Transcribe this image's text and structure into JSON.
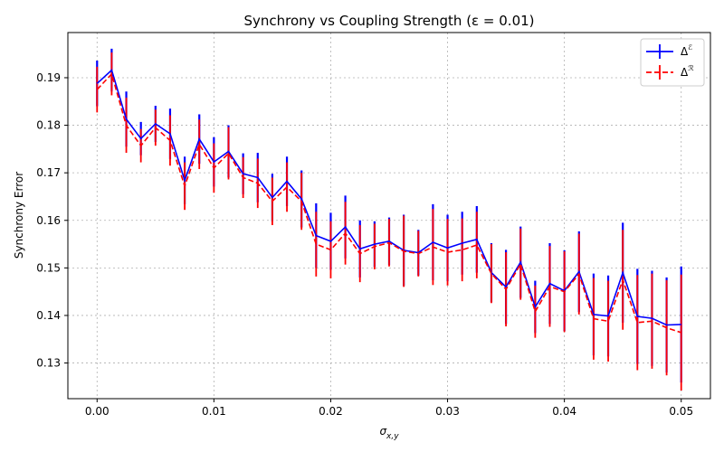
{
  "chart_data": {
    "type": "line",
    "title": "Synchrony vs Coupling Strength (ε = 0.01)",
    "xlabel_base": "σ",
    "xlabel_sub": "x,y",
    "ylabel": "Synchrony Error",
    "xlim": [
      -0.0025,
      0.0525
    ],
    "ylim": [
      0.1225,
      0.1995
    ],
    "xticks": [
      0.0,
      0.01,
      0.02,
      0.03,
      0.04,
      0.05
    ],
    "xtick_labels": [
      "0.00",
      "0.01",
      "0.02",
      "0.03",
      "0.04",
      "0.05"
    ],
    "yticks": [
      0.13,
      0.14,
      0.15,
      0.16,
      0.17,
      0.18,
      0.19
    ],
    "ytick_labels": [
      "0.13",
      "0.14",
      "0.15",
      "0.16",
      "0.17",
      "0.18",
      "0.19"
    ],
    "grid": true,
    "legend_position": "top-right",
    "x": [
      0.0,
      0.00125,
      0.0025,
      0.00375,
      0.005,
      0.00625,
      0.0075,
      0.00875,
      0.01,
      0.01125,
      0.0125,
      0.01375,
      0.015,
      0.01625,
      0.0175,
      0.01875,
      0.02,
      0.02125,
      0.0225,
      0.02375,
      0.025,
      0.02625,
      0.0275,
      0.02875,
      0.03,
      0.03125,
      0.0325,
      0.03375,
      0.035,
      0.03625,
      0.0375,
      0.03875,
      0.04,
      0.04125,
      0.0425,
      0.04375,
      0.045,
      0.04625,
      0.0475,
      0.04875,
      0.05
    ],
    "series": [
      {
        "name": "Δ",
        "name_sup": "ℰ",
        "color": "#0000ff",
        "linestyle": "solid",
        "values": [
          0.1888,
          0.1916,
          0.1813,
          0.1772,
          0.1803,
          0.1782,
          0.1684,
          0.1771,
          0.1723,
          0.1745,
          0.1698,
          0.169,
          0.1648,
          0.1682,
          0.1645,
          0.1568,
          0.1556,
          0.1586,
          0.154,
          0.155,
          0.1556,
          0.1537,
          0.1532,
          0.1554,
          0.1542,
          0.1552,
          0.156,
          0.149,
          0.146,
          0.1512,
          0.1418,
          0.1467,
          0.1452,
          0.1492,
          0.1402,
          0.1399,
          0.149,
          0.1398,
          0.1394,
          0.138,
          0.1381
        ],
        "errors": [
          0.0048,
          0.0045,
          0.0058,
          0.0035,
          0.0038,
          0.0053,
          0.005,
          0.0052,
          0.0052,
          0.0055,
          0.0043,
          0.0052,
          0.005,
          0.0052,
          0.006,
          0.0068,
          0.006,
          0.0066,
          0.006,
          0.0048,
          0.005,
          0.0075,
          0.0048,
          0.008,
          0.007,
          0.0066,
          0.007,
          0.0062,
          0.0078,
          0.0075,
          0.0055,
          0.0085,
          0.0085,
          0.0085,
          0.0086,
          0.0085,
          0.0105,
          0.01,
          0.01,
          0.01,
          0.0122
        ]
      },
      {
        "name": "Δ",
        "name_sup": "ℛ",
        "color": "#ff0000",
        "linestyle": "dashed",
        "values": [
          0.1875,
          0.1908,
          0.18,
          0.1757,
          0.1795,
          0.1768,
          0.1672,
          0.176,
          0.171,
          0.1741,
          0.169,
          0.1678,
          0.164,
          0.167,
          0.164,
          0.155,
          0.1538,
          0.1573,
          0.153,
          0.1545,
          0.1553,
          0.1535,
          0.153,
          0.1544,
          0.1533,
          0.1538,
          0.1548,
          0.1488,
          0.1455,
          0.1508,
          0.1408,
          0.1461,
          0.145,
          0.1487,
          0.1393,
          0.1388,
          0.1475,
          0.1385,
          0.1388,
          0.1374,
          0.1364
        ]
      }
    ]
  }
}
